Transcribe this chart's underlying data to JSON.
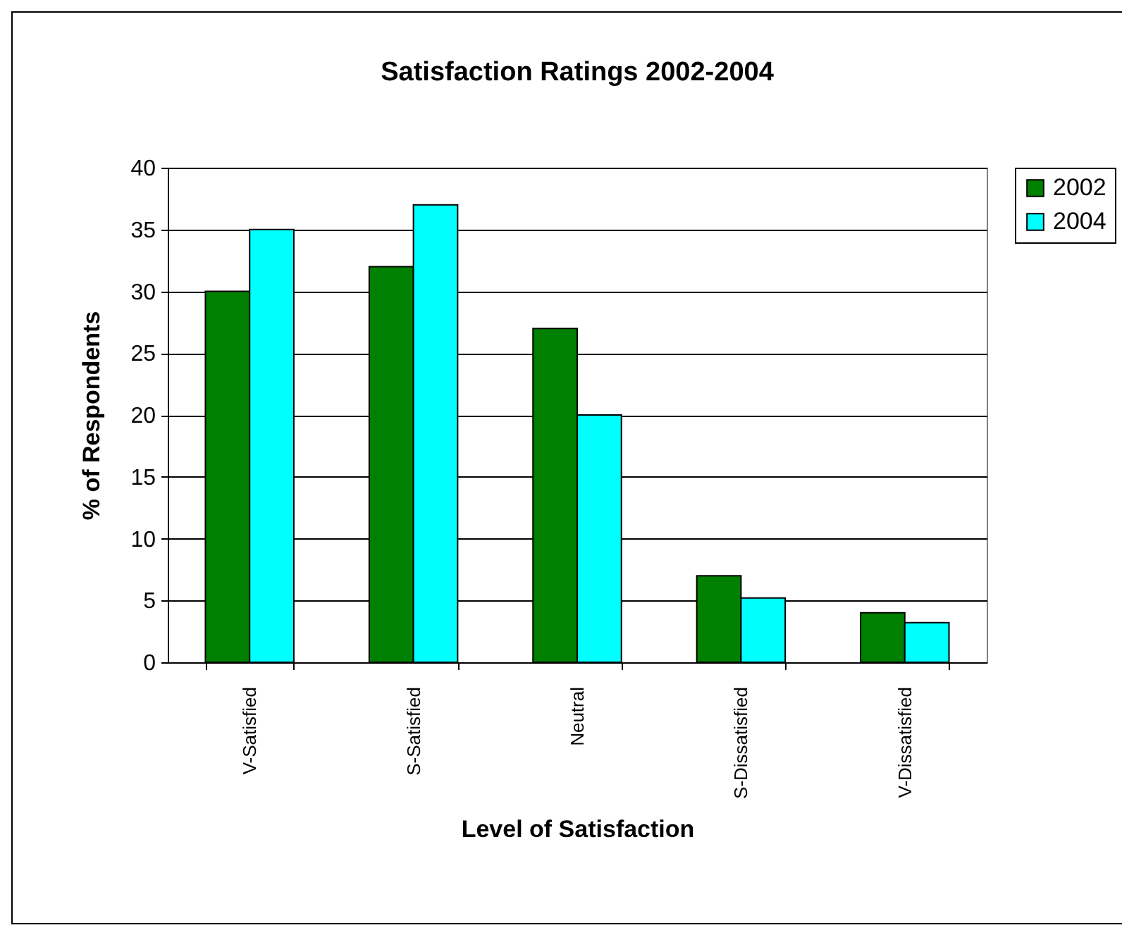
{
  "chart_data": {
    "type": "bar",
    "title": "Satisfaction Ratings 2002-2004",
    "xlabel": "Level of Satisfaction",
    "ylabel": "% of Respondents",
    "categories": [
      "V-Satisfied",
      "S-Satisfied",
      "Neutral",
      "S-Dissatisfied",
      "V-Dissatisfied"
    ],
    "series": [
      {
        "name": "2002",
        "color": "#008000",
        "values": [
          30,
          32,
          27,
          7,
          4
        ]
      },
      {
        "name": "2004",
        "color": "#00ffff",
        "values": [
          35,
          37,
          20,
          5.2,
          3.2
        ]
      }
    ],
    "ylim": [
      0,
      40
    ],
    "yticks": [
      0,
      5,
      10,
      15,
      20,
      25,
      30,
      35,
      40
    ],
    "grid": "y",
    "legend": "right"
  }
}
